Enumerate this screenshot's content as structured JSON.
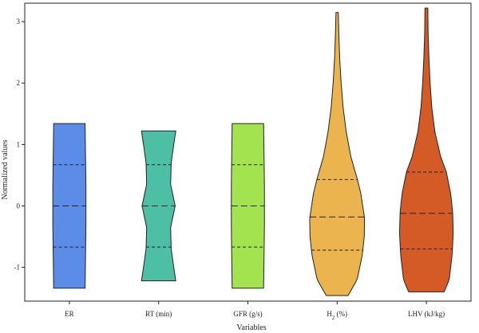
{
  "chart_data": {
    "type": "violin",
    "xlabel": "Variables",
    "ylabel": "Normalized values",
    "ylim": [
      -1.55,
      3.3
    ],
    "yticks": [
      -1,
      0,
      1,
      2,
      3
    ],
    "ytick_labels": [
      "-1",
      "0",
      "1",
      "2",
      "3"
    ],
    "categories": [
      {
        "label": "ER",
        "label_main": "ER",
        "label_sub": "",
        "label_tail": "",
        "color": "#5b8de8",
        "min": -1.34,
        "max": 1.34,
        "q1": -0.67,
        "median": 0.0,
        "q3": 0.67,
        "profile": [
          [
            -1.34,
            0.55
          ],
          [
            -1.0,
            0.56
          ],
          [
            -0.67,
            0.57
          ],
          [
            -0.3,
            0.58
          ],
          [
            0.0,
            0.58
          ],
          [
            0.3,
            0.58
          ],
          [
            0.67,
            0.57
          ],
          [
            1.0,
            0.56
          ],
          [
            1.34,
            0.55
          ]
        ]
      },
      {
        "label": "RT (min)",
        "label_main": "RT (min)",
        "label_sub": "",
        "label_tail": "",
        "color": "#4cbfa5",
        "min": -1.22,
        "max": 1.22,
        "q1": -0.67,
        "median": 0.0,
        "q3": 0.67,
        "profile": [
          [
            -1.22,
            0.6
          ],
          [
            -1.0,
            0.53
          ],
          [
            -0.7,
            0.44
          ],
          [
            -0.35,
            0.42
          ],
          [
            0.0,
            0.58
          ],
          [
            0.35,
            0.42
          ],
          [
            0.7,
            0.44
          ],
          [
            1.0,
            0.53
          ],
          [
            1.22,
            0.6
          ]
        ]
      },
      {
        "label": "GFR (g/s)",
        "label_main": "GFR (g/s)",
        "label_sub": "",
        "label_tail": "",
        "color": "#a3e34f",
        "min": -1.34,
        "max": 1.34,
        "q1": -0.67,
        "median": 0.0,
        "q3": 0.67,
        "profile": [
          [
            -1.34,
            0.55
          ],
          [
            -1.0,
            0.56
          ],
          [
            -0.67,
            0.57
          ],
          [
            -0.3,
            0.58
          ],
          [
            0.0,
            0.58
          ],
          [
            0.3,
            0.58
          ],
          [
            0.67,
            0.57
          ],
          [
            1.0,
            0.56
          ],
          [
            1.34,
            0.55
          ]
        ]
      },
      {
        "label": "H2 (%)",
        "label_main": "H",
        "label_sub": "2",
        "label_tail": " (%)",
        "color": "#ebb44f",
        "min": -1.46,
        "max": 3.15,
        "q1": -0.72,
        "median": -0.18,
        "q3": 0.43,
        "profile": [
          [
            -1.46,
            0.38
          ],
          [
            -1.2,
            0.7
          ],
          [
            -0.8,
            0.88
          ],
          [
            -0.5,
            0.95
          ],
          [
            -0.2,
            0.96
          ],
          [
            0.2,
            0.83
          ],
          [
            0.43,
            0.71
          ],
          [
            0.8,
            0.48
          ],
          [
            1.2,
            0.32
          ],
          [
            1.6,
            0.21
          ],
          [
            2.0,
            0.14
          ],
          [
            2.4,
            0.09
          ],
          [
            2.8,
            0.06
          ],
          [
            3.15,
            0.04
          ]
        ]
      },
      {
        "label": "LHV (kJ/kg)",
        "label_main": "LHV (kJ/kg)",
        "label_sub": "",
        "label_tail": "",
        "color": "#d45a26",
        "min": -1.4,
        "max": 3.22,
        "q1": -0.7,
        "median": -0.12,
        "q3": 0.55,
        "profile": [
          [
            -1.4,
            0.62
          ],
          [
            -1.2,
            0.8
          ],
          [
            -0.8,
            0.9
          ],
          [
            -0.45,
            0.94
          ],
          [
            -0.1,
            0.92
          ],
          [
            0.2,
            0.85
          ],
          [
            0.55,
            0.7
          ],
          [
            0.8,
            0.5
          ],
          [
            1.2,
            0.3
          ],
          [
            1.6,
            0.19
          ],
          [
            2.0,
            0.13
          ],
          [
            2.4,
            0.09
          ],
          [
            2.8,
            0.06
          ],
          [
            3.22,
            0.05
          ]
        ]
      }
    ]
  }
}
